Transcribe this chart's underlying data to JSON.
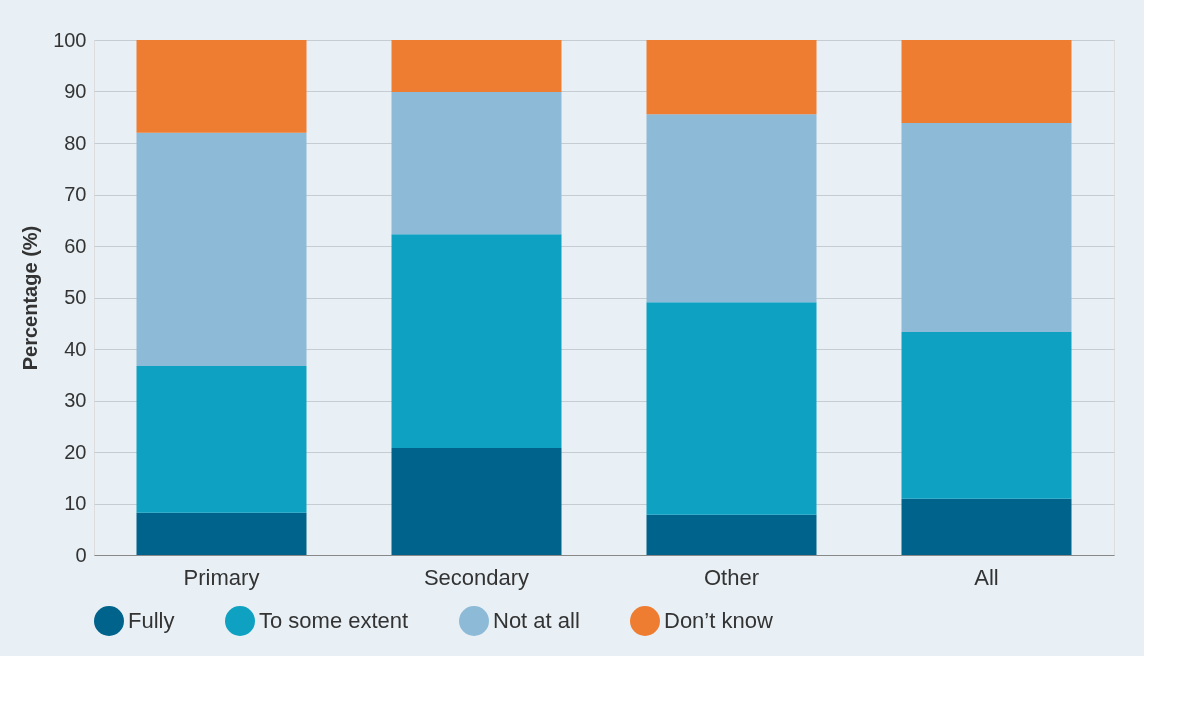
{
  "chart_data": {
    "type": "bar",
    "stacked": true,
    "ylabel": "Percentage (%)",
    "categories": [
      "Primary",
      "Secondary",
      "Other",
      "All"
    ],
    "series": [
      {
        "name": "Fully",
        "color": "#00638b",
        "values": [
          8.2,
          20.8,
          7.8,
          10.9
        ]
      },
      {
        "name": "To some extent",
        "color": "#0ea1c2",
        "values": [
          28.5,
          41.5,
          41.3,
          32.4
        ]
      },
      {
        "name": "Not at all",
        "color": "#8dbad6",
        "values": [
          45.3,
          27.6,
          36.5,
          40.6
        ]
      },
      {
        "name": "Don’t know",
        "color": "#ef7d31",
        "values": [
          18.0,
          10.1,
          14.4,
          16.1
        ]
      }
    ],
    "ylim": [
      0,
      100
    ],
    "yticks": [
      0,
      10,
      20,
      30,
      40,
      50,
      60,
      70,
      80,
      90,
      100
    ],
    "grid": "y",
    "legend": "bottom"
  }
}
